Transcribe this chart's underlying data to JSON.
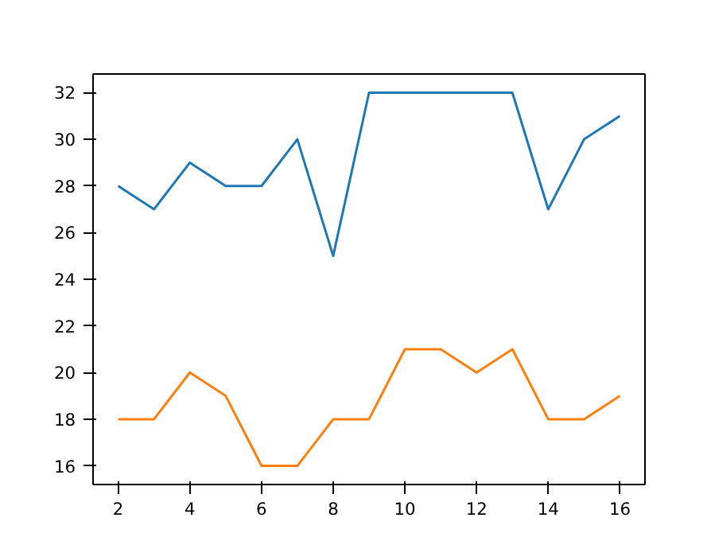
{
  "chart_data": {
    "type": "line",
    "x": [
      2,
      3,
      4,
      5,
      6,
      7,
      8,
      9,
      10,
      11,
      12,
      13,
      14,
      15,
      16
    ],
    "series": [
      {
        "color": "#1f77b4",
        "values": [
          28,
          27,
          29,
          28,
          28,
          30,
          25,
          32,
          32,
          32,
          32,
          32,
          27,
          30,
          31
        ]
      },
      {
        "color": "#ff7f0e",
        "values": [
          18,
          18,
          20,
          19,
          16,
          16,
          18,
          18,
          21,
          21,
          20,
          21,
          18,
          18,
          19
        ]
      }
    ],
    "xlim": [
      1.3,
      16.7
    ],
    "ylim": [
      15.2,
      32.8
    ],
    "xticks": [
      2,
      4,
      6,
      8,
      10,
      12,
      14,
      16
    ],
    "yticks": [
      16,
      18,
      20,
      22,
      24,
      26,
      28,
      30,
      32
    ],
    "grid": false,
    "marker": "none",
    "line_style": "solid"
  }
}
